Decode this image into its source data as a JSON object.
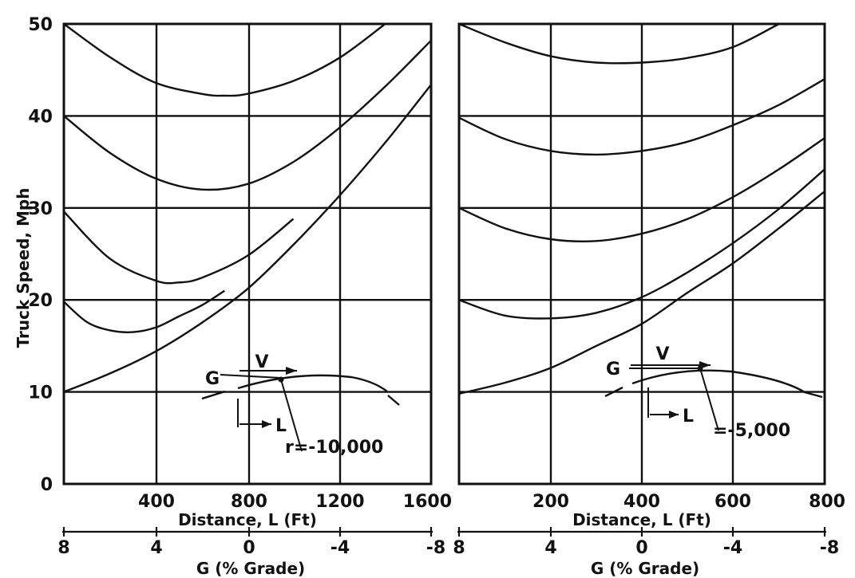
{
  "chart_data": [
    {
      "type": "line",
      "ylabel": "Truck Speed, Mph",
      "xlabel": "Distance, L (Ft)",
      "x_ticks": [
        "400",
        "800",
        "1200",
        "1600"
      ],
      "y_ticks": [
        "0",
        "10",
        "20",
        "30",
        "40",
        "50"
      ],
      "xlim": [
        0,
        1600
      ],
      "ylim": [
        0,
        50
      ],
      "grid": true,
      "secondary_axis": {
        "label": "G (% Grade)",
        "ticks": [
          "8",
          "4",
          "0",
          "-4",
          "-8"
        ],
        "range": [
          8,
          -8
        ]
      },
      "inset": {
        "g_label": "G",
        "v_label": "V",
        "l_label": "L",
        "r_label": "r=-10,000"
      },
      "series": [
        {
          "x": [
            0,
            200,
            400,
            600,
            700,
            800,
            1000,
            1200,
            1400
          ],
          "y": [
            50,
            46.4,
            43.6,
            42.4,
            42.2,
            42.4,
            43.8,
            46.3,
            50
          ]
        },
        {
          "x": [
            0,
            200,
            400,
            600,
            800,
            1000,
            1200,
            1400,
            1600
          ],
          "y": [
            40,
            36,
            33.2,
            32,
            32.6,
            35,
            38.7,
            43.2,
            48.2
          ]
        },
        {
          "x": [
            0,
            200,
            400,
            500,
            600,
            800,
            1000
          ],
          "y": [
            29.6,
            24.5,
            22.1,
            21.9,
            22.4,
            24.8,
            28.8
          ]
        },
        {
          "x": [
            0,
            100,
            200,
            300,
            400,
            500,
            600,
            700
          ],
          "y": [
            19.8,
            17.6,
            16.7,
            16.5,
            17,
            18.2,
            19.4,
            21
          ]
        },
        {
          "x": [
            0,
            200,
            400,
            600,
            800,
            1000,
            1200,
            1400,
            1600
          ],
          "y": [
            10,
            12,
            14.4,
            17.5,
            21.2,
            26,
            31.3,
            37.1,
            43.4
          ]
        }
      ]
    },
    {
      "type": "line",
      "xlabel": "Distance, L (Ft)",
      "x_ticks": [
        "200",
        "400",
        "600",
        "800"
      ],
      "xlim": [
        0,
        800
      ],
      "ylim": [
        0,
        50
      ],
      "grid": true,
      "secondary_axis": {
        "label": "G (% Grade)",
        "ticks": [
          "8",
          "4",
          "0",
          "-4",
          "-8"
        ],
        "range": [
          8,
          -8
        ]
      },
      "inset": {
        "g_label": "G",
        "v_label": "V",
        "l_label": "L",
        "r_label": "=-5,000"
      },
      "series": [
        {
          "x": [
            0,
            100,
            200,
            300,
            400,
            500,
            600,
            700
          ],
          "y": [
            50,
            48,
            46.5,
            45.8,
            45.8,
            46.3,
            47.5,
            50
          ]
        },
        {
          "x": [
            0,
            100,
            200,
            300,
            400,
            500,
            600,
            700,
            800
          ],
          "y": [
            39.8,
            37.5,
            36.2,
            35.8,
            36.2,
            37.2,
            39,
            41.2,
            44
          ]
        },
        {
          "x": [
            0,
            100,
            200,
            300,
            400,
            500,
            600,
            700,
            800
          ],
          "y": [
            30,
            27.8,
            26.6,
            26.4,
            27.2,
            28.8,
            31.2,
            34.2,
            37.6
          ]
        },
        {
          "x": [
            0,
            100,
            200,
            300,
            400,
            500,
            600,
            700,
            800
          ],
          "y": [
            20,
            18.3,
            18,
            18.6,
            20.3,
            23,
            26.2,
            29.9,
            34.2
          ]
        },
        {
          "x": [
            0,
            100,
            200,
            300,
            400,
            500,
            600,
            700,
            800
          ],
          "y": [
            9.8,
            11,
            12.6,
            15,
            17.4,
            20.8,
            24,
            27.8,
            31.8
          ]
        }
      ]
    }
  ]
}
